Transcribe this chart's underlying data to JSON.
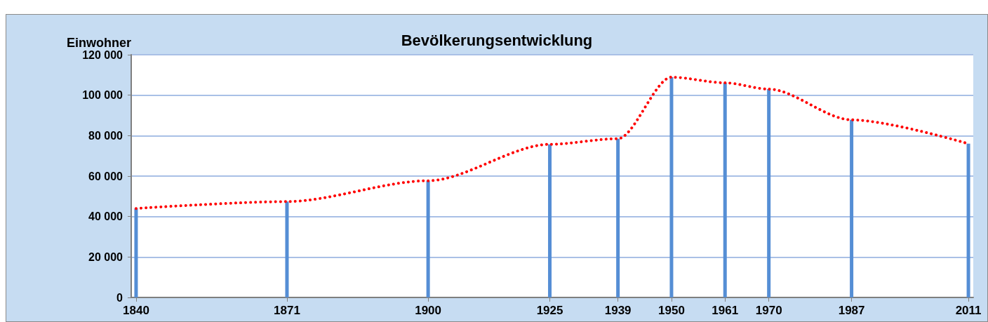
{
  "chart_data": {
    "type": "bar",
    "title": "Bevölkerungsentwicklung",
    "ylabel": "Einwohner",
    "x": [
      1840,
      1871,
      1900,
      1925,
      1939,
      1950,
      1961,
      1970,
      1987,
      2011
    ],
    "series": [
      {
        "color": "#558ed5",
        "values": [
          44000,
          47400,
          57700,
          75700,
          78500,
          108900,
          106100,
          103000,
          87800,
          76000
        ]
      },
      {
        "type": "line",
        "color": "#ff0000",
        "line_style": "dotted",
        "marker": "none",
        "values": [
          44000,
          47400,
          57700,
          75700,
          78500,
          108900,
          106100,
          103000,
          87800,
          76000
        ]
      }
    ],
    "xlim": [
      1839,
      2012
    ],
    "xticks": [
      1840,
      1871,
      1900,
      1925,
      1939,
      1950,
      1961,
      1970,
      1987,
      2011
    ],
    "ylim": [
      0,
      120000
    ],
    "yticks": [
      {
        "value": 0,
        "label": "0"
      },
      {
        "value": 20000,
        "label": "20 000"
      },
      {
        "value": 40000,
        "label": "40 000"
      },
      {
        "value": 60000,
        "label": "60 000"
      },
      {
        "value": 80000,
        "label": "80 000"
      },
      {
        "value": 100000,
        "label": "100 000"
      },
      {
        "value": 120000,
        "label": "120 000"
      }
    ],
    "grid": "y"
  }
}
